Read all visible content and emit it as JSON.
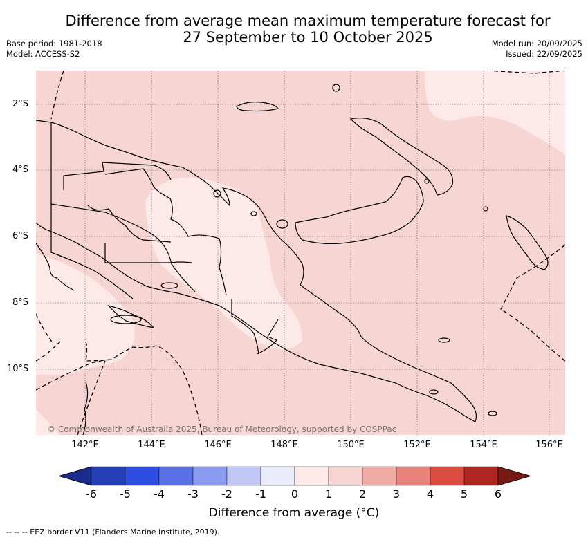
{
  "title_line1": "Difference from average mean maximum temperature forecast for",
  "title_line2": "27 September to 10 October 2025",
  "meta": {
    "base_period": "Base period: 1981-2018",
    "model": "Model: ACCESS-S2",
    "model_run": "Model run: 20/09/2025",
    "issued": "Issued: 22/09/2025"
  },
  "map": {
    "latitude_labels": [
      "2°S",
      "4°S",
      "6°S",
      "8°S",
      "10°S"
    ],
    "longitude_labels": [
      "142°E",
      "144°E",
      "146°E",
      "148°E",
      "150°E",
      "152°E",
      "154°E",
      "156°E"
    ],
    "copyright": "© Commonwealth of Australia 2025, Bureau of Meteorology, supported by COSPPac",
    "fill_colors": {
      "zero_to_one": "#fdeae8",
      "one_to_two": "#f6d5d2"
    }
  },
  "colorbar": {
    "ticks": [
      "-6",
      "-5",
      "-4",
      "-3",
      "-2",
      "-1",
      "0",
      "1",
      "2",
      "3",
      "4",
      "5",
      "6"
    ],
    "colors": [
      "#1b2b8c",
      "#243fb5",
      "#2d4ee0",
      "#5a72e6",
      "#8a9cee",
      "#c1c8f5",
      "#e9ebfa",
      "#fdeae8",
      "#f6d5d2",
      "#f0aba5",
      "#e7837b",
      "#db4b3f",
      "#ae2722",
      "#771a16"
    ],
    "title": "Difference from average (°C)",
    "range": [
      -6,
      6
    ]
  },
  "legend_note": "--  --  -- EEZ border V11 (Flanders Marine Institute, 2019)."
}
